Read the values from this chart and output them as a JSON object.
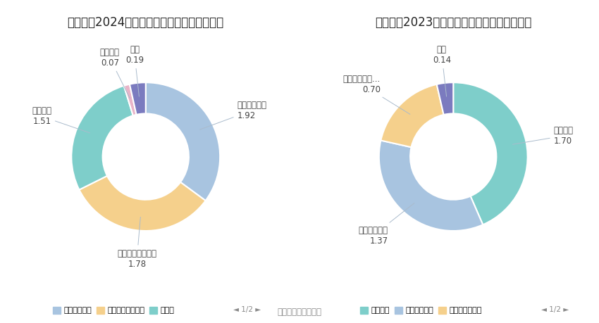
{
  "chart1": {
    "title": "巨轮智能2024年上半年营业收入构成（亿元）",
    "labels": [
      "液压式硫化机",
      "机器人及智能装备",
      "轮胎模具",
      "精密机床",
      "其他"
    ],
    "values": [
      1.92,
      1.78,
      1.51,
      0.07,
      0.19
    ],
    "colors": [
      "#a8c4e0",
      "#f5d08c",
      "#7ececa",
      "#e8b4c8",
      "#7b7bbf"
    ],
    "label_names": [
      "液压式硫化机",
      "机器人及智能装备",
      "轮胎模具",
      "精密机床",
      "其他"
    ],
    "label_values": [
      "1.92",
      "1.78",
      "1.51",
      "0.07",
      "0.19"
    ],
    "legend_labels": [
      "液压式硫化机",
      "机器人及智能装备",
      "轮胎模"
    ],
    "legend_colors": [
      "#a8c4e0",
      "#f5d08c",
      "#7ececa"
    ]
  },
  "chart2": {
    "title": "巨轮智能2023年上半年营业收入构成（亿元）",
    "labels": [
      "轮胎模具",
      "液压式硫化机",
      "机器人及智能...",
      "其他"
    ],
    "values": [
      1.7,
      1.37,
      0.7,
      0.14
    ],
    "colors": [
      "#7ececa",
      "#a8c4e0",
      "#f5d08c",
      "#7b7bbf"
    ],
    "label_names": [
      "轮胎模具",
      "液压式硫化机",
      "机器人及智能...",
      "其他"
    ],
    "label_values": [
      "1.70",
      "1.37",
      "0.70",
      "0.14"
    ],
    "legend_labels": [
      "轮胎模具",
      "液压式硫化机",
      "机器人及智能装"
    ],
    "legend_colors": [
      "#7ececa",
      "#a8c4e0",
      "#f5d08c"
    ]
  },
  "background_color": "#ffffff",
  "source_text": "数据来源：恒生聚源",
  "title_fontsize": 12,
  "label_fontsize": 8.5,
  "legend_fontsize": 8
}
